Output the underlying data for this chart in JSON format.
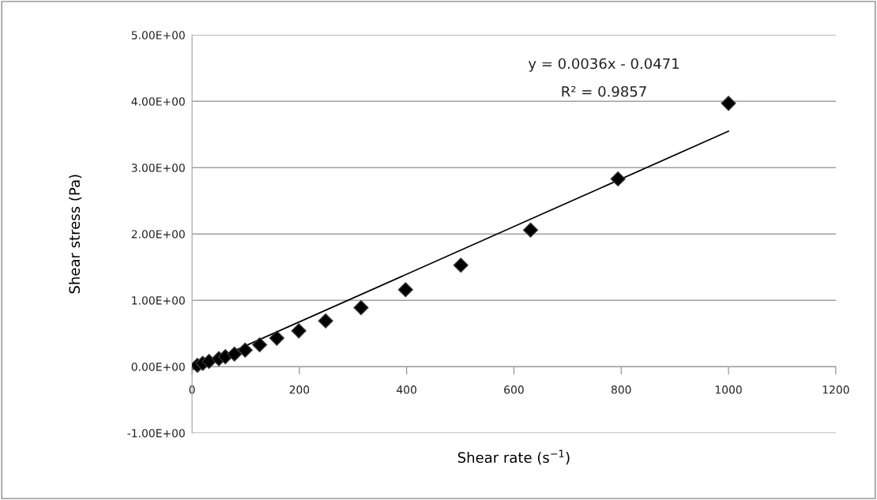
{
  "chart_data": {
    "type": "scatter",
    "xlabel": "Shear rate (s$^{−1}$)",
    "ylabel": "Shear stress (Pa)",
    "xlim": [
      0,
      1200
    ],
    "xticks": [
      0,
      200,
      400,
      600,
      800,
      1000,
      1200
    ],
    "ylim": [
      -1,
      5
    ],
    "yticks": [
      {
        "value": -1,
        "label": "-1.00E+00"
      },
      {
        "value": 0,
        "label": "0.00E+00"
      },
      {
        "value": 1,
        "label": "1.00E+00"
      },
      {
        "value": 2,
        "label": "2.00E+00"
      },
      {
        "value": 3,
        "label": "3.00E+00"
      },
      {
        "value": 4,
        "label": "4.00E+00"
      },
      {
        "value": 5,
        "label": "5.00E+00"
      }
    ],
    "grid": "y",
    "legend": false,
    "series": [
      {
        "color": "#000000",
        "marker": "diamond",
        "x": [
          10,
          20,
          31.6,
          50,
          62,
          79,
          99,
          126,
          158,
          199,
          249,
          315,
          398,
          501,
          631,
          794,
          1000
        ],
        "values": [
          0.02,
          0.05,
          0.08,
          0.12,
          0.15,
          0.19,
          0.25,
          0.33,
          0.43,
          0.54,
          0.69,
          0.89,
          1.16,
          1.53,
          2.06,
          2.83,
          3.97
        ]
      },
      {
        "type": "line",
        "color": "#000000",
        "marker": "none",
        "x": [
          1,
          1000
        ],
        "values": [
          -0.04,
          3.55
        ]
      }
    ],
    "annotations": [
      "y = 0.0036x - 0.0471",
      "R² = 0.9857"
    ]
  }
}
